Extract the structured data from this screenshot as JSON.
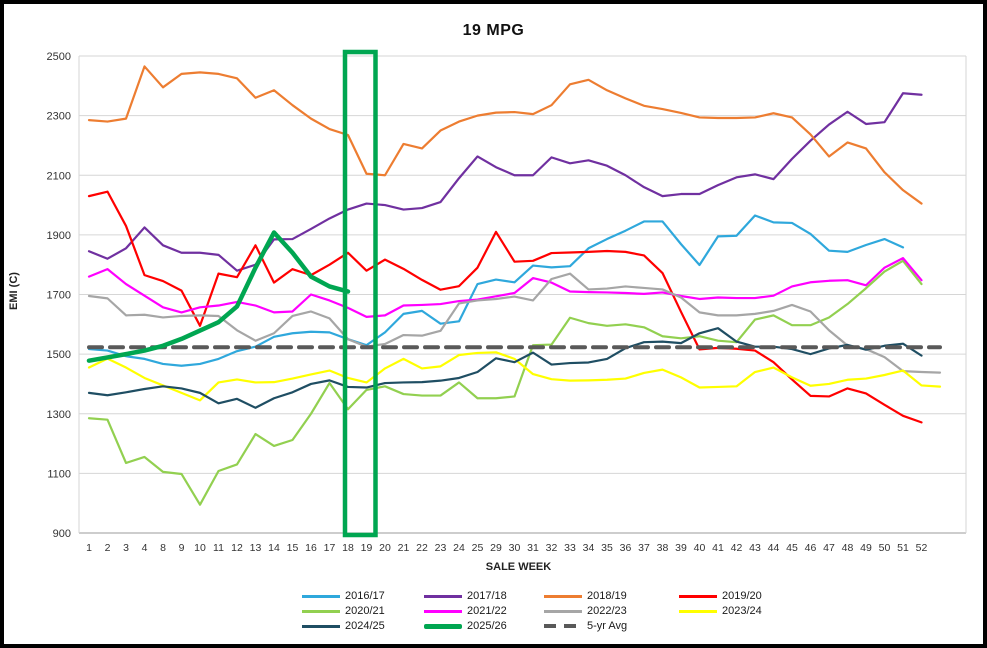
{
  "window": {
    "title": "19 MPG"
  },
  "chart_data": {
    "type": "line",
    "title": "19 MPG",
    "xlabel": "SALE WEEK",
    "ylabel": "EMI (C)",
    "ylim": [
      900,
      2500
    ],
    "y_ticks": [
      900,
      1100,
      1300,
      1500,
      1700,
      1900,
      2100,
      2300,
      2500
    ],
    "grid": true,
    "legend_position": "bottom",
    "categories": [
      "1",
      "2",
      "3",
      "4",
      "8",
      "9",
      "10",
      "11",
      "12",
      "13",
      "14",
      "15",
      "16",
      "17",
      "18",
      "19",
      "20",
      "21",
      "22",
      "23",
      "24",
      "25",
      "29",
      "30",
      "31",
      "32",
      "33",
      "34",
      "35",
      "36",
      "37",
      "38",
      "39",
      "40",
      "41",
      "42",
      "43",
      "44",
      "45",
      "46",
      "47",
      "48",
      "49",
      "50",
      "51",
      "52",
      ""
    ],
    "highlight": {
      "from_week": "18",
      "to_week": "19",
      "color": "#00A651",
      "note": "vertical-box"
    },
    "series": [
      {
        "name": "2016/17",
        "color": "#2FA8DC",
        "width": 2.2,
        "values": [
          1517,
          1512,
          1493,
          1484,
          1467,
          1461,
          1467,
          1484,
          1510,
          1525,
          1558,
          1570,
          1575,
          1573,
          1550,
          1530,
          1573,
          1635,
          1645,
          1602,
          1610,
          1735,
          1750,
          1741,
          1797,
          1791,
          1795,
          1855,
          1886,
          1914,
          1945,
          1945,
          1869,
          1799,
          1895,
          1897,
          1965,
          1942,
          1940,
          1903,
          1847,
          1843,
          1866,
          1886,
          1858,
          null,
          null
        ]
      },
      {
        "name": "2017/18",
        "color": "#7030A0",
        "width": 2.2,
        "values": [
          1845,
          1820,
          1855,
          1925,
          1865,
          1840,
          1840,
          1833,
          1780,
          1800,
          1885,
          1886,
          1920,
          1955,
          1985,
          2005,
          2000,
          1985,
          1990,
          2010,
          2090,
          2163,
          2127,
          2100,
          2100,
          2160,
          2140,
          2150,
          2132,
          2100,
          2060,
          2030,
          2037,
          2037,
          2067,
          2093,
          2103,
          2087,
          2155,
          2216,
          2270,
          2313,
          2272,
          2278,
          2375,
          2370,
          null
        ]
      },
      {
        "name": "2018/19",
        "color": "#ED7D31",
        "width": 2.2,
        "values": [
          2285,
          2280,
          2290,
          2465,
          2395,
          2440,
          2445,
          2440,
          2425,
          2360,
          2385,
          2335,
          2290,
          2255,
          2235,
          2105,
          2100,
          2205,
          2190,
          2250,
          2280,
          2300,
          2310,
          2312,
          2305,
          2335,
          2405,
          2420,
          2385,
          2358,
          2333,
          2322,
          2309,
          2294,
          2292,
          2292,
          2294,
          2308,
          2294,
          2237,
          2163,
          2210,
          2190,
          2110,
          2050,
          2005,
          null
        ]
      },
      {
        "name": "2019/20",
        "color": "#FF0000",
        "width": 2.2,
        "values": [
          2030,
          2045,
          1930,
          1765,
          1745,
          1713,
          1595,
          1770,
          1758,
          1865,
          1740,
          1785,
          1765,
          1800,
          1840,
          1780,
          1817,
          1786,
          1749,
          1716,
          1728,
          1790,
          1910,
          1810,
          1813,
          1839,
          1841,
          1843,
          1846,
          1843,
          1831,
          1772,
          1642,
          1516,
          1521,
          1518,
          1512,
          1473,
          1415,
          1360,
          1358,
          1385,
          1368,
          1330,
          1293,
          1271,
          null
        ]
      },
      {
        "name": "2020/21",
        "color": "#92D050",
        "width": 2.2,
        "values": [
          1285,
          1280,
          1135,
          1155,
          1105,
          1098,
          995,
          1108,
          1130,
          1232,
          1192,
          1212,
          1300,
          1403,
          1315,
          1380,
          1392,
          1366,
          1361,
          1361,
          1405,
          1352,
          1352,
          1358,
          1530,
          1532,
          1622,
          1604,
          1595,
          1600,
          1590,
          1560,
          1553,
          1560,
          1545,
          1540,
          1616,
          1630,
          1597,
          1597,
          1623,
          1668,
          1721,
          1777,
          1813,
          1735,
          null
        ]
      },
      {
        "name": "2021/22",
        "color": "#FF00FF",
        "width": 2.2,
        "values": [
          1760,
          1785,
          1735,
          1696,
          1657,
          1640,
          1657,
          1663,
          1675,
          1663,
          1640,
          1643,
          1700,
          1680,
          1655,
          1625,
          1630,
          1663,
          1665,
          1668,
          1678,
          1683,
          1694,
          1705,
          1755,
          1740,
          1710,
          1708,
          1707,
          1705,
          1702,
          1707,
          1695,
          1685,
          1690,
          1688,
          1688,
          1696,
          1727,
          1741,
          1746,
          1748,
          1731,
          1790,
          1822,
          1748,
          null
        ]
      },
      {
        "name": "2022/23",
        "color": "#A6A6A6",
        "width": 2.2,
        "values": [
          1695,
          1687,
          1630,
          1632,
          1623,
          1628,
          1630,
          1628,
          1580,
          1545,
          1570,
          1628,
          1643,
          1620,
          1550,
          1525,
          1534,
          1564,
          1562,
          1578,
          1670,
          1680,
          1685,
          1693,
          1680,
          1752,
          1770,
          1717,
          1720,
          1727,
          1722,
          1717,
          1690,
          1640,
          1630,
          1630,
          1635,
          1645,
          1665,
          1643,
          1580,
          1529,
          1517,
          1490,
          1443,
          1440,
          1438
        ]
      },
      {
        "name": "2023/24",
        "color": "#FFFF00",
        "width": 2.2,
        "values": [
          1455,
          1485,
          1455,
          1420,
          1395,
          1370,
          1345,
          1405,
          1415,
          1405,
          1406,
          1418,
          1432,
          1445,
          1420,
          1405,
          1452,
          1484,
          1452,
          1459,
          1497,
          1504,
          1506,
          1484,
          1433,
          1416,
          1411,
          1412,
          1414,
          1418,
          1437,
          1448,
          1422,
          1388,
          1390,
          1392,
          1440,
          1455,
          1422,
          1394,
          1400,
          1414,
          1418,
          1430,
          1445,
          1395,
          1391
        ]
      },
      {
        "name": "2024/25",
        "color": "#1F4E63",
        "width": 2.2,
        "values": [
          1370,
          1362,
          1372,
          1383,
          1392,
          1385,
          1370,
          1335,
          1350,
          1320,
          1352,
          1372,
          1400,
          1412,
          1390,
          1388,
          1403,
          1405,
          1406,
          1411,
          1420,
          1440,
          1486,
          1473,
          1505,
          1465,
          1470,
          1472,
          1484,
          1520,
          1540,
          1542,
          1537,
          1570,
          1587,
          1542,
          1525,
          1525,
          1517,
          1500,
          1519,
          1531,
          1515,
          1528,
          1535,
          1495,
          null
        ]
      },
      {
        "name": "2025/26",
        "color": "#00A651",
        "width": 4.5,
        "values": [
          1478,
          1489,
          1500,
          1512,
          1528,
          1551,
          1579,
          1607,
          1660,
          1790,
          1908,
          1840,
          1760,
          1727,
          1710,
          null,
          null,
          null,
          null,
          null,
          null,
          null,
          null,
          null,
          null,
          null,
          null,
          null,
          null,
          null,
          null,
          null,
          null,
          null,
          null,
          null,
          null,
          null,
          null,
          null,
          null,
          null,
          null,
          null,
          null,
          null,
          null
        ]
      },
      {
        "name": "5-yr Avg",
        "color": "#595959",
        "width": 4,
        "dashed": true,
        "constant": 1523
      }
    ]
  }
}
